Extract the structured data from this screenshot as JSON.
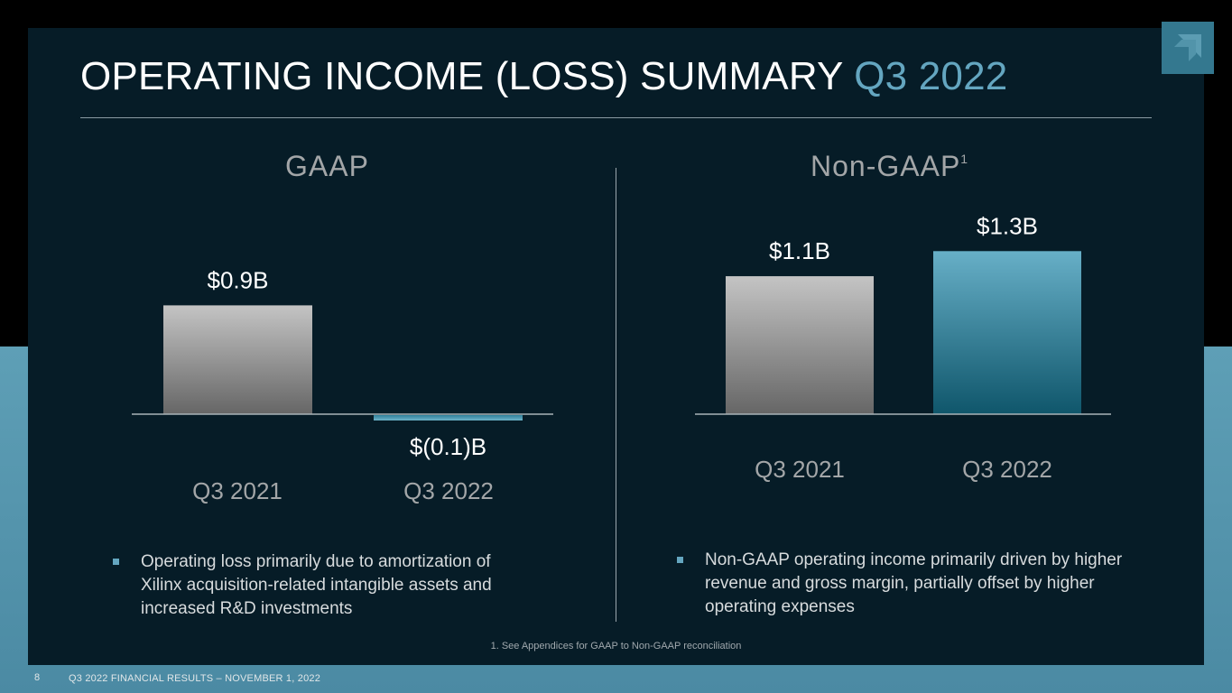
{
  "slide": {
    "title_main": "OPERATING INCOME (LOSS) SUMMARY",
    "title_accent": "Q3 2022",
    "footnote": "1. See Appendices for GAAP to Non-GAAP reconciliation",
    "page_number": "8",
    "footer": "Q3 2022 FINANCIAL RESULTS – NOVEMBER 1, 2022",
    "logo_icon": "amd-arrow-icon",
    "colors": {
      "background_dark": "#061c27",
      "accent": "#64a6c0",
      "bar_gray": "#bdbdbd",
      "bar_teal": "#5aa3ba"
    }
  },
  "gaap": {
    "heading": "GAAP",
    "bullet": "Operating loss primarily due to amortization of Xilinx acquisition-related intangible assets and increased R&D investments"
  },
  "nongaap": {
    "heading": "Non-GAAP",
    "heading_sup": "1",
    "bullet": "Non-GAAP operating income primarily driven by higher revenue and gross margin, partially offset by higher operating expenses"
  },
  "chart_data": [
    {
      "type": "bar",
      "title": "GAAP",
      "categories": [
        "Q3 2021",
        "Q3 2022"
      ],
      "values": [
        0.9,
        -0.1
      ],
      "value_labels": [
        "$0.9B",
        "$(0.1)B"
      ],
      "unit": "$B",
      "colors": [
        "#bdbdbd",
        "#5aa3ba"
      ],
      "ylim": [
        -0.1,
        1.3
      ],
      "grid": false,
      "legend": "none"
    },
    {
      "type": "bar",
      "title": "Non-GAAP",
      "categories": [
        "Q3 2021",
        "Q3 2022"
      ],
      "values": [
        1.1,
        1.3
      ],
      "value_labels": [
        "$1.1B",
        "$1.3B"
      ],
      "unit": "$B",
      "colors": [
        "#bdbdbd",
        "#5aa3ba"
      ],
      "ylim": [
        0,
        1.3
      ],
      "grid": false,
      "legend": "none"
    }
  ]
}
